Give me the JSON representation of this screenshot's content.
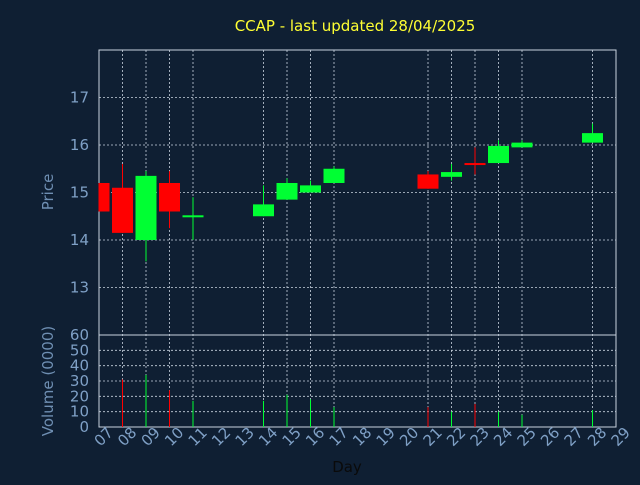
{
  "chart_data": {
    "type": "candlestick",
    "title": "CCAP - last updated 28/04/2025",
    "xlabel": "Day",
    "price_panel": {
      "ylabel": "Price",
      "ylim": [
        12.0,
        18.0
      ],
      "yticks": [
        13,
        14,
        15,
        16,
        17
      ]
    },
    "volume_panel": {
      "ylabel": "Volume (0000)",
      "ylim": [
        0,
        60
      ],
      "yticks": [
        0,
        10,
        20,
        30,
        40,
        50,
        60
      ]
    },
    "x_ticks": [
      "07",
      "08",
      "09",
      "10",
      "11",
      "14",
      "15",
      "16",
      "17",
      "21",
      "22",
      "23",
      "24",
      "25",
      "28",
      "29",
      "07",
      "08",
      "09",
      "10",
      "11",
      "14",
      "15",
      "16",
      "17",
      "18",
      "19",
      "20",
      "21",
      "22",
      "23",
      "24",
      "25",
      "26",
      "27",
      "28",
      "29"
    ],
    "x_tick_labels": [
      "07",
      "08",
      "09",
      "10",
      "11",
      "12",
      "13",
      "14",
      "15",
      "16",
      "17",
      "18",
      "19",
      "20",
      "21",
      "22",
      "23",
      "24",
      "25",
      "26",
      "27",
      "28",
      "29"
    ],
    "x_range": [
      7,
      29
    ],
    "x_grid": [
      8,
      9,
      10,
      11,
      14,
      15,
      16,
      17,
      21,
      22,
      23,
      24,
      25,
      28
    ],
    "candles": [
      {
        "day": 7,
        "open": 15.2,
        "high": 15.2,
        "low": 14.6,
        "close": 14.6,
        "volume": 0
      },
      {
        "day": 8,
        "open": 15.1,
        "high": 15.6,
        "low": 14.15,
        "close": 14.15,
        "volume": 31
      },
      {
        "day": 9,
        "open": 14.0,
        "high": 15.45,
        "low": 13.55,
        "close": 15.35,
        "volume": 34
      },
      {
        "day": 10,
        "open": 15.2,
        "high": 15.45,
        "low": 14.25,
        "close": 14.6,
        "volume": 24
      },
      {
        "day": 11,
        "open": 14.48,
        "high": 14.9,
        "low": 14.0,
        "close": 14.52,
        "volume": 17
      },
      {
        "day": 14,
        "open": 14.5,
        "high": 15.15,
        "low": 14.5,
        "close": 14.75,
        "volume": 17
      },
      {
        "day": 15,
        "open": 14.85,
        "high": 15.3,
        "low": 14.85,
        "close": 15.2,
        "volume": 21
      },
      {
        "day": 16,
        "open": 15.0,
        "high": 15.25,
        "low": 15.0,
        "close": 15.15,
        "volume": 18
      },
      {
        "day": 17,
        "open": 15.2,
        "high": 15.55,
        "low": 15.2,
        "close": 15.5,
        "volume": 13
      },
      {
        "day": 21,
        "open": 15.38,
        "high": 15.45,
        "low": 15.08,
        "close": 15.08,
        "volume": 13
      },
      {
        "day": 22,
        "open": 15.33,
        "high": 15.6,
        "low": 15.25,
        "close": 15.43,
        "volume": 10
      },
      {
        "day": 23,
        "open": 15.62,
        "high": 15.95,
        "low": 15.38,
        "close": 15.58,
        "volume": 15
      },
      {
        "day": 24,
        "open": 15.62,
        "high": 16.1,
        "low": 15.62,
        "close": 15.98,
        "volume": 10
      },
      {
        "day": 25,
        "open": 15.95,
        "high": 16.1,
        "low": 15.95,
        "close": 16.05,
        "volume": 8
      },
      {
        "day": 28,
        "open": 16.05,
        "high": 16.45,
        "low": 16.05,
        "close": 16.25,
        "volume": 11
      }
    ],
    "up_color": "#00ff33",
    "down_color": "#ff0000",
    "grid": true,
    "background_color": "#0f1f33",
    "title_color": "#ffff33",
    "axis_text_color": "#7fa0c6"
  }
}
